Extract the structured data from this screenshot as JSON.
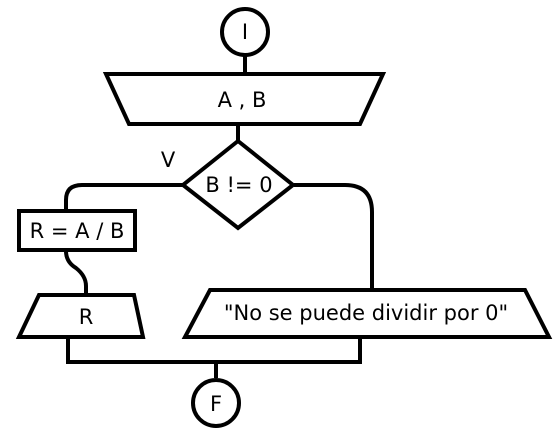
{
  "diagram": {
    "start": {
      "label": "I"
    },
    "input": {
      "label": "A , B"
    },
    "decision": {
      "label": "B != 0",
      "true_branch_label": "V"
    },
    "process": {
      "label": "R = A / B"
    },
    "output_result": {
      "label": "R"
    },
    "output_error": {
      "label": "\"No se puede dividir por 0\""
    },
    "end": {
      "label": "F"
    }
  }
}
